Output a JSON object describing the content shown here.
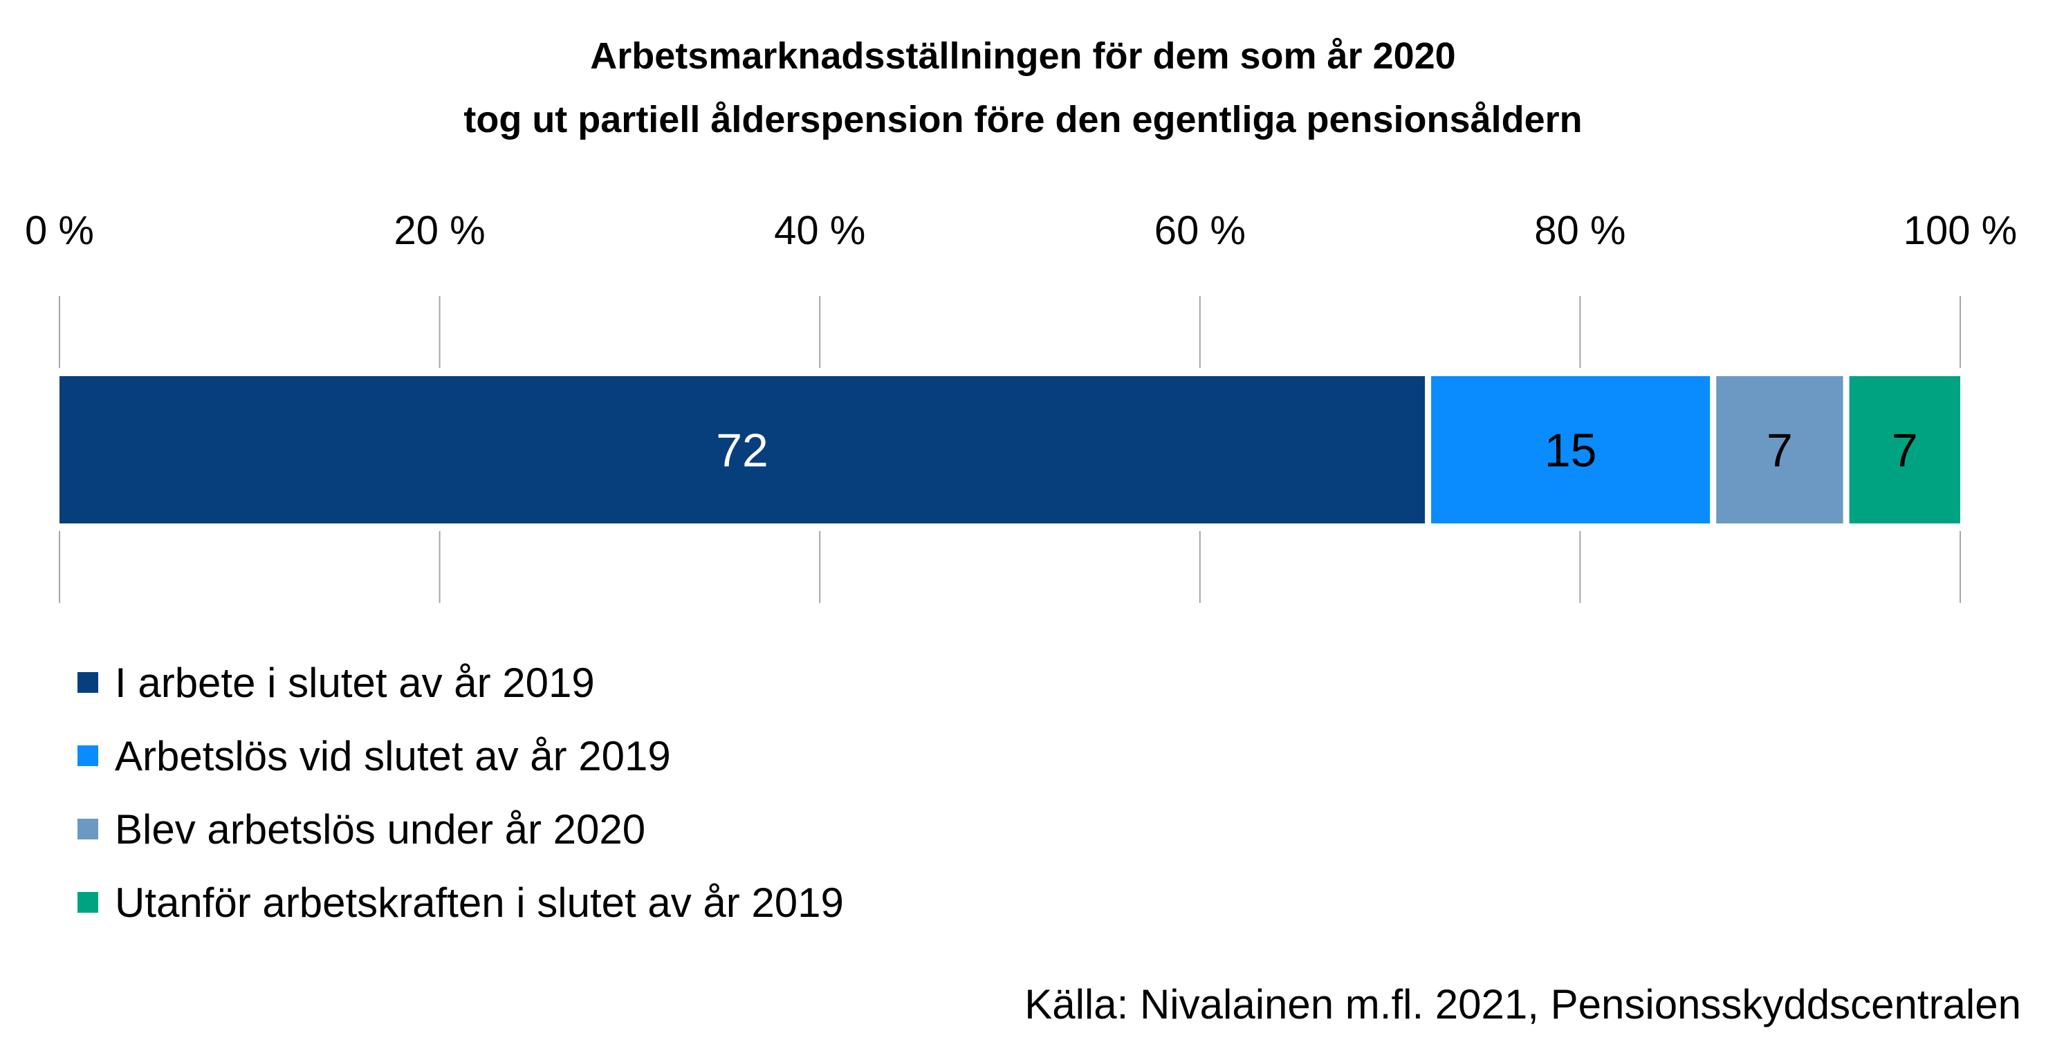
{
  "chart_data": {
    "type": "bar",
    "orientation": "horizontal-stacked-percent",
    "title": "Arbetsmarknadsställningen för dem som år 2020",
    "subtitle": "tog ut partiell ålderspension före den egentliga pensionsåldern",
    "x_ticks": [
      "0 %",
      "20 %",
      "40 %",
      "60 %",
      "80 %",
      "100 %"
    ],
    "xlim": [
      0,
      100
    ],
    "grid": true,
    "legend_position": "bottom-left",
    "series": [
      {
        "name": "I arbete i slutet av år 2019",
        "value": 72,
        "label": "72",
        "color": "#073f7c",
        "label_color": "#ffffff"
      },
      {
        "name": "Arbetslös vid slutet av år 2019",
        "value": 15,
        "label": "15",
        "color": "#0a8cff",
        "label_color": "#000000"
      },
      {
        "name": "Blev arbetslös under år 2020",
        "value": 7,
        "label": "7",
        "color": "#6b99c3",
        "label_color": "#000000"
      },
      {
        "name": "Utanför arbetskraften i slutet av år 2019",
        "value": 7,
        "label": "7",
        "color": "#00a381",
        "label_color": "#000000"
      }
    ]
  },
  "source": "Källa: Nivalainen m.fl. 2021, Pensionsskyddscentralen"
}
